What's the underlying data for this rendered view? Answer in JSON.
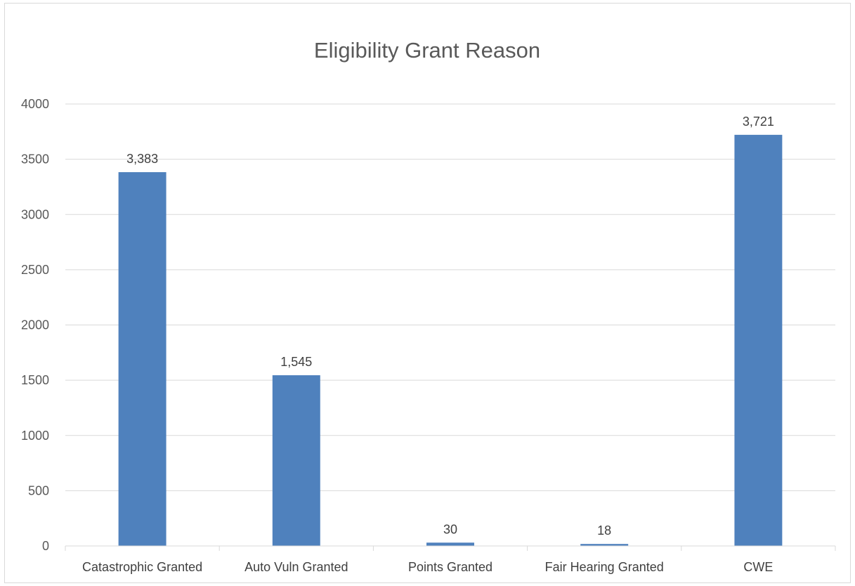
{
  "chart_data": {
    "type": "bar",
    "title": "Eligibility Grant Reason",
    "categories": [
      "Catastrophic Granted",
      "Auto Vuln Granted",
      "Points Granted",
      "Fair Hearing Granted",
      "CWE"
    ],
    "values": [
      3383,
      1545,
      30,
      18,
      3721
    ],
    "data_labels": [
      "3,383",
      "1,545",
      "30",
      "18",
      "3,721"
    ],
    "ylim": [
      0,
      4000
    ],
    "yticks": [
      0,
      500,
      1000,
      1500,
      2000,
      2500,
      3000,
      3500,
      4000
    ],
    "ytick_labels": [
      "0",
      "500",
      "1000",
      "1500",
      "2000",
      "2500",
      "3000",
      "3500",
      "4000"
    ],
    "xlabel": "",
    "ylabel": "",
    "grid": true,
    "legend": false,
    "bar_color": "#4f81bd"
  }
}
